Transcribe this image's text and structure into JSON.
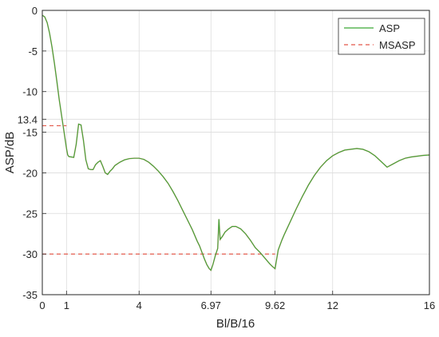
{
  "chart_data": {
    "type": "line",
    "xlabel": "Bl/B/16",
    "ylabel": "ASP/dB",
    "xlim": [
      0,
      16
    ],
    "ylim": [
      -35,
      0
    ],
    "xticks": [
      {
        "value": 0,
        "label": "0"
      },
      {
        "value": 1,
        "label": "1"
      },
      {
        "value": 4,
        "label": "4"
      },
      {
        "value": 6.97,
        "label": "6.97"
      },
      {
        "value": 9.62,
        "label": "9.62"
      },
      {
        "value": 12,
        "label": "12"
      },
      {
        "value": 16,
        "label": "16"
      }
    ],
    "yticks": [
      {
        "value": 0,
        "label": "0"
      },
      {
        "value": -5,
        "label": "-5"
      },
      {
        "value": -10,
        "label": "-10"
      },
      {
        "value": -13.4,
        "label": "13.4"
      },
      {
        "value": -15,
        "label": "-15"
      },
      {
        "value": -20,
        "label": "-20"
      },
      {
        "value": -25,
        "label": "-25"
      },
      {
        "value": -30,
        "label": "-30"
      },
      {
        "value": -35,
        "label": "-35"
      }
    ],
    "grid": true,
    "legend_position": "top-right",
    "series": [
      {
        "name": "ASP",
        "style": "solid",
        "color": "#3aa635",
        "x": [
          0,
          0.1,
          0.2,
          0.3,
          0.4,
          0.5,
          0.6,
          0.7,
          0.8,
          0.9,
          1.0,
          1.05,
          1.1,
          1.2,
          1.3,
          1.4,
          1.5,
          1.6,
          1.7,
          1.8,
          1.9,
          2.0,
          2.1,
          2.2,
          2.3,
          2.4,
          2.5,
          2.6,
          2.7,
          2.8,
          2.9,
          3.0,
          3.2,
          3.4,
          3.6,
          3.8,
          4.0,
          4.2,
          4.4,
          4.6,
          4.8,
          5.0,
          5.2,
          5.4,
          5.6,
          5.8,
          6.0,
          6.2,
          6.4,
          6.5,
          6.6,
          6.7,
          6.8,
          6.9,
          6.97,
          7.05,
          7.15,
          7.25,
          7.3,
          7.35,
          7.45,
          7.55,
          7.7,
          7.85,
          8.0,
          8.2,
          8.4,
          8.6,
          8.8,
          9.0,
          9.2,
          9.4,
          9.5,
          9.62,
          9.75,
          9.9,
          10.0,
          10.25,
          10.5,
          10.75,
          11.0,
          11.25,
          11.5,
          11.75,
          12.0,
          12.25,
          12.5,
          12.75,
          13.0,
          13.25,
          13.5,
          13.75,
          14.0,
          14.25,
          14.5,
          14.75,
          15.0,
          15.25,
          15.5,
          15.75,
          16.0
        ],
        "values": [
          -0.6,
          -0.8,
          -1.5,
          -2.8,
          -4.5,
          -6.5,
          -8.7,
          -11.0,
          -13.0,
          -15.0,
          -17.0,
          -17.8,
          -18.0,
          -18.05,
          -18.1,
          -16.5,
          -14.0,
          -14.1,
          -16.0,
          -18.4,
          -19.5,
          -19.6,
          -19.6,
          -19.0,
          -18.7,
          -18.5,
          -19.2,
          -20.0,
          -20.2,
          -19.8,
          -19.5,
          -19.1,
          -18.7,
          -18.4,
          -18.25,
          -18.2,
          -18.2,
          -18.35,
          -18.7,
          -19.2,
          -19.8,
          -20.5,
          -21.3,
          -22.3,
          -23.4,
          -24.6,
          -25.8,
          -27.0,
          -28.4,
          -29.0,
          -29.8,
          -30.6,
          -31.3,
          -31.8,
          -32.0,
          -31.3,
          -30.2,
          -29.3,
          -25.7,
          -28.2,
          -27.8,
          -27.3,
          -26.9,
          -26.6,
          -26.6,
          -26.9,
          -27.5,
          -28.3,
          -29.2,
          -29.8,
          -30.5,
          -31.2,
          -31.5,
          -31.8,
          -29.5,
          -28.3,
          -27.6,
          -26.0,
          -24.4,
          -22.9,
          -21.5,
          -20.3,
          -19.3,
          -18.5,
          -17.9,
          -17.5,
          -17.2,
          -17.1,
          -17.0,
          -17.1,
          -17.4,
          -17.9,
          -18.6,
          -19.3,
          -18.9,
          -18.5,
          -18.2,
          -18.05,
          -17.95,
          -17.85,
          -17.8
        ]
      },
      {
        "name": "MSASP",
        "style": "dashed",
        "color": "#e3584a",
        "segments": [
          {
            "x": [
              0,
              1
            ],
            "y": [
              -14.2,
              -14.2
            ]
          },
          {
            "x": [
              0,
              9.62
            ],
            "y": [
              -30.0,
              -30.0
            ]
          }
        ]
      }
    ]
  }
}
